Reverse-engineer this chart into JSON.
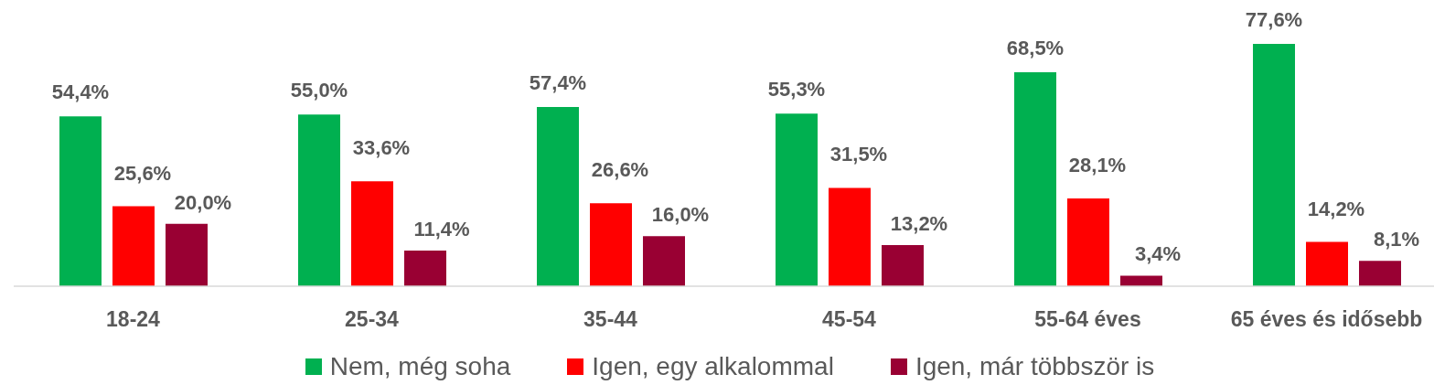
{
  "chart_data": {
    "type": "bar",
    "categories": [
      "18-24",
      "25-34",
      "35-44",
      "45-54",
      "55-64 éves",
      "65 éves és idősebb"
    ],
    "series": [
      {
        "name": "Nem, még soha",
        "color": "#00b050",
        "values": [
          54.4,
          55.0,
          57.4,
          55.3,
          68.5,
          77.6
        ],
        "value_labels": [
          "54,4%",
          "55,0%",
          "57,4%",
          "55,3%",
          "68,5%",
          "77,6%"
        ]
      },
      {
        "name": "Igen, egy alkalommal",
        "color": "#ff0000",
        "values": [
          25.6,
          33.6,
          26.6,
          31.5,
          28.1,
          14.2
        ],
        "value_labels": [
          "25,6%",
          "33,6%",
          "26,6%",
          "31,5%",
          "28,1%",
          "14,2%"
        ]
      },
      {
        "name": "Igen, már többször is",
        "color": "#990033",
        "values": [
          20.0,
          11.4,
          16.0,
          13.2,
          3.4,
          8.1
        ],
        "value_labels": [
          "20,0%",
          "11,4%",
          "16,0%",
          "13,2%",
          "3,4%",
          "8,1%"
        ]
      }
    ],
    "legend": "bottom",
    "tick_labels": "x"
  }
}
